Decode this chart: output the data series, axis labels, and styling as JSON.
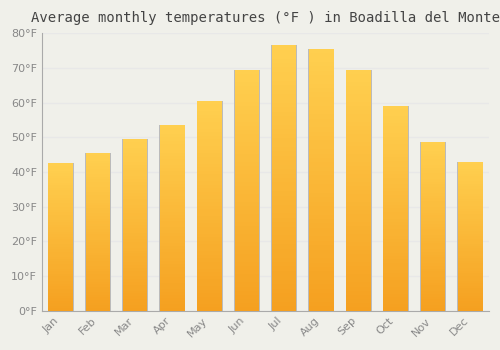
{
  "title": "Average monthly temperatures (°F ) in Boadilla del Monte",
  "months": [
    "Jan",
    "Feb",
    "Mar",
    "Apr",
    "May",
    "Jun",
    "Jul",
    "Aug",
    "Sep",
    "Oct",
    "Nov",
    "Dec"
  ],
  "values": [
    42.5,
    45.5,
    49.5,
    53.5,
    60.5,
    69.5,
    76.5,
    75.5,
    69.5,
    59.0,
    48.5,
    43.0
  ],
  "bar_color_bottom": "#F5A020",
  "bar_color_top": "#FFD050",
  "bar_outline_color": "#BBBBBB",
  "ylim": [
    0,
    80
  ],
  "yticks": [
    0,
    10,
    20,
    30,
    40,
    50,
    60,
    70,
    80
  ],
  "ytick_labels": [
    "0°F",
    "10°F",
    "20°F",
    "30°F",
    "40°F",
    "50°F",
    "60°F",
    "70°F",
    "80°F"
  ],
  "background_color": "#f0f0ea",
  "grid_color": "#e8e8e8",
  "title_fontsize": 10,
  "tick_fontsize": 8,
  "bar_width": 0.68,
  "n_grad": 60
}
